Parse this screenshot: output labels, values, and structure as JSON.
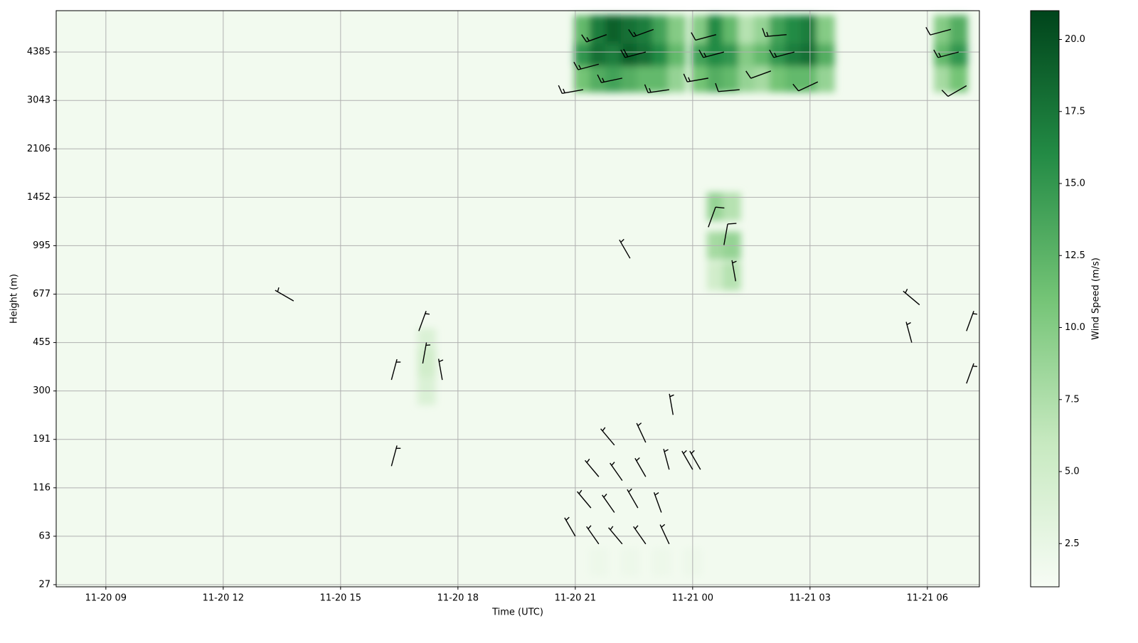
{
  "chart_data": {
    "type": "heatmap",
    "xlabel": "Time (UTC)",
    "ylabel": "Height (m)",
    "colorbar_label": "Wind Speed (m/s)",
    "xlim": [
      7.73,
      31.33
    ],
    "xticks": [
      {
        "value": 9,
        "label": "11-20 09"
      },
      {
        "value": 12,
        "label": "11-20 12"
      },
      {
        "value": 15,
        "label": "11-20 15"
      },
      {
        "value": 18,
        "label": "11-20 18"
      },
      {
        "value": 21,
        "label": "11-20 21"
      },
      {
        "value": 24,
        "label": "11-21 00"
      },
      {
        "value": 27,
        "label": "11-21 03"
      },
      {
        "value": 30,
        "label": "11-21 06"
      }
    ],
    "ylim": [
      26,
      5990
    ],
    "yticks": [
      27,
      63,
      116,
      191,
      300,
      455,
      677,
      995,
      1452,
      2106,
      3043,
      4385
    ],
    "clim": [
      1,
      21
    ],
    "cticks": [
      2.5,
      {
        "value": 5,
        "label": "5.0"
      },
      7.5,
      {
        "value": 10,
        "label": "10.0"
      },
      12.5,
      {
        "value": 15,
        "label": "15.0"
      },
      17.5,
      {
        "value": 20,
        "label": "20.0"
      }
    ],
    "colormap": [
      "#f7fcf5",
      "#c7e9c0",
      "#74c476",
      "#238b45",
      "#00441b"
    ],
    "grid": true,
    "cells": {
      "x": [
        21.2,
        21.6,
        22.0,
        22.4,
        22.8,
        23.2,
        23.6,
        21.2,
        21.6,
        22.0,
        22.4,
        22.8,
        23.2,
        23.6,
        21.2,
        21.6,
        22.0,
        22.4,
        22.8,
        23.2,
        23.6,
        24.2,
        24.6,
        25.0,
        25.4,
        24.2,
        24.6,
        25.0,
        25.4,
        24.2,
        24.6,
        25.0,
        25.4,
        25.8,
        26.2,
        26.6,
        27.0,
        27.4,
        25.8,
        26.2,
        26.6,
        27.0,
        27.4,
        25.8,
        26.2,
        26.6,
        27.0,
        27.4,
        30.4,
        30.8,
        30.4,
        30.8,
        30.4,
        30.8,
        24.6,
        25.0,
        24.6,
        25.0,
        24.6,
        25.0,
        17.2,
        17.2,
        17.2,
        21.6,
        22.4,
        23.2,
        24.0
      ],
      "height": [
        3600,
        3600,
        3600,
        3600,
        3600,
        3600,
        3600,
        4385,
        4385,
        4385,
        4385,
        4385,
        4385,
        4385,
        5200,
        5200,
        5200,
        5200,
        5200,
        5200,
        5200,
        3600,
        3600,
        3600,
        3600,
        4385,
        4385,
        4385,
        4385,
        5200,
        5200,
        5200,
        5200,
        3600,
        3600,
        3600,
        3600,
        3600,
        4385,
        4385,
        4385,
        4385,
        4385,
        5200,
        5200,
        5200,
        5200,
        5200,
        3600,
        3600,
        4385,
        4385,
        5200,
        5200,
        1350,
        1350,
        995,
        995,
        780,
        780,
        455,
        380,
        300,
        40,
        40,
        40,
        40
      ],
      "values": [
        11,
        13,
        14,
        13,
        12,
        12,
        9,
        15,
        18,
        17,
        19,
        18,
        16,
        12,
        12,
        17,
        19,
        18,
        17,
        14,
        10,
        11,
        13,
        12,
        9,
        14,
        16,
        15,
        10,
        10,
        16,
        12,
        7,
        8,
        11,
        12,
        12,
        9,
        12,
        15,
        17,
        18,
        13,
        9,
        14,
        16,
        17,
        10,
        8,
        11,
        12,
        15,
        10,
        13,
        9,
        7,
        8,
        9,
        5,
        7,
        4,
        5,
        4,
        2,
        2,
        2,
        2
      ]
    },
    "barbs": {
      "x": [
        21.2,
        21.6,
        22.2,
        22.8,
        23.4,
        23.0,
        21.8,
        24.4,
        24.8,
        25.2,
        24.6,
        26.0,
        26.6,
        27.2,
        26.4,
        30.6,
        30.8,
        31.0,
        21.0,
        21.6,
        22.2,
        22.8,
        23.4,
        21.4,
        22.0,
        22.6,
        23.2,
        21.6,
        22.2,
        22.8,
        23.4,
        22.0,
        22.8,
        23.5,
        24.0,
        24.2,
        13.8,
        16.3,
        17.0,
        17.1,
        17.6,
        16.3,
        22.4,
        24.4,
        24.8,
        25.1,
        29.8,
        29.6,
        31.0,
        31.0
      ],
      "height": [
        3300,
        4000,
        3600,
        4385,
        3300,
        5200,
        5000,
        3600,
        4385,
        3300,
        5000,
        3800,
        4385,
        3500,
        5000,
        5200,
        4385,
        3400,
        63,
        55,
        55,
        55,
        55,
        90,
        85,
        90,
        85,
        130,
        125,
        130,
        140,
        180,
        185,
        240,
        140,
        140,
        640,
        330,
        500,
        380,
        330,
        145,
        900,
        1150,
        1000,
        750,
        620,
        455,
        500,
        320
      ],
      "speed": [
        15,
        18,
        17,
        20,
        15,
        18,
        15,
        15,
        17,
        14,
        12,
        14,
        17,
        12,
        15,
        13,
        15,
        10,
        6,
        8,
        9,
        8,
        7,
        8,
        8,
        9,
        7,
        9,
        9,
        8,
        6,
        7,
        7,
        5,
        5,
        5,
        5,
        6,
        7,
        8,
        8,
        6,
        5,
        10,
        10,
        8,
        5,
        5,
        6,
        6
      ],
      "direction": [
        260,
        255,
        258,
        255,
        262,
        250,
        250,
        260,
        255,
        265,
        255,
        250,
        255,
        245,
        265,
        255,
        255,
        240,
        330,
        325,
        320,
        325,
        335,
        320,
        325,
        330,
        340,
        320,
        325,
        330,
        345,
        320,
        335,
        350,
        330,
        330,
        300,
        15,
        20,
        10,
        350,
        15,
        330,
        20,
        10,
        350,
        310,
        345,
        20,
        20
      ]
    }
  }
}
